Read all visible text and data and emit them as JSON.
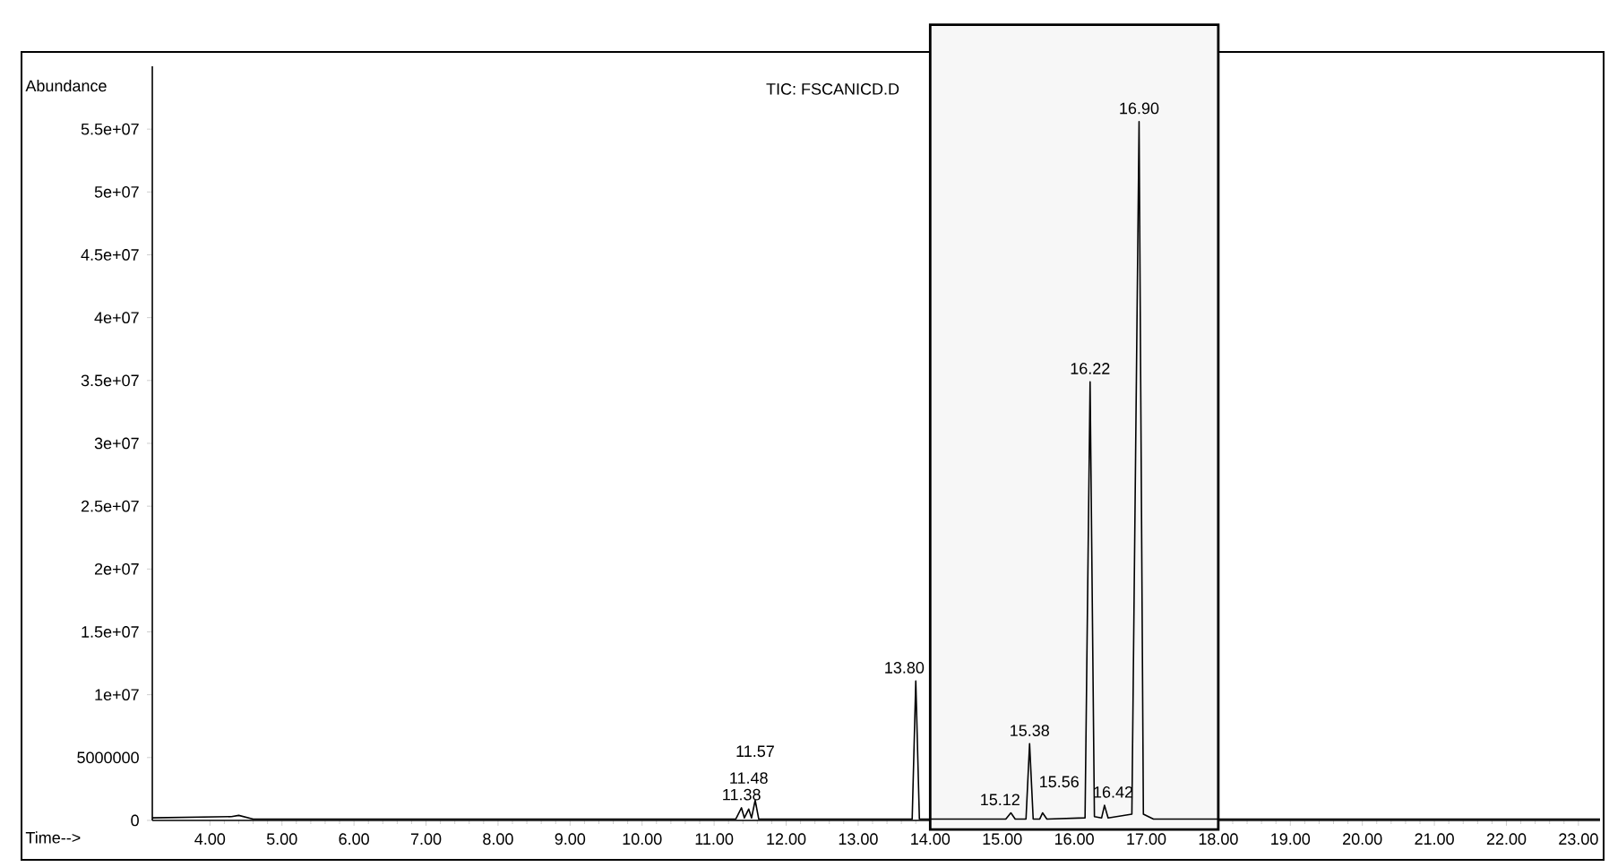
{
  "chart_data": {
    "type": "line",
    "title": "TIC: FSCANICD.D",
    "xlabel": "Time-->",
    "ylabel": "Abundance",
    "xlim": [
      3.2,
      23.3
    ],
    "ylim": [
      0,
      60000000
    ],
    "xticks": [
      {
        "value": 4,
        "label": "4.00"
      },
      {
        "value": 5,
        "label": "5.00"
      },
      {
        "value": 6,
        "label": "6.00"
      },
      {
        "value": 7,
        "label": "7.00"
      },
      {
        "value": 8,
        "label": "8.00"
      },
      {
        "value": 9,
        "label": "9.00"
      },
      {
        "value": 10,
        "label": "10.00"
      },
      {
        "value": 11,
        "label": "11.00"
      },
      {
        "value": 12,
        "label": "12.00"
      },
      {
        "value": 13,
        "label": "13.00"
      },
      {
        "value": 14,
        "label": "14.00"
      },
      {
        "value": 15,
        "label": "15.00"
      },
      {
        "value": 16,
        "label": "16.00"
      },
      {
        "value": 17,
        "label": "17.00"
      },
      {
        "value": 18,
        "label": "18.00"
      },
      {
        "value": 19,
        "label": "19.00"
      },
      {
        "value": 20,
        "label": "20.00"
      },
      {
        "value": 21,
        "label": "21.00"
      },
      {
        "value": 22,
        "label": "22.00"
      },
      {
        "value": 23,
        "label": "23.00"
      }
    ],
    "yticks": [
      0,
      5000000,
      {
        "value": 10000000,
        "label": "1e+07"
      },
      {
        "value": 15000000,
        "label": "1.5e+07"
      },
      {
        "value": 20000000,
        "label": "2e+07"
      },
      {
        "value": 25000000,
        "label": "2.5e+07"
      },
      {
        "value": 30000000,
        "label": "3e+07"
      },
      {
        "value": 35000000,
        "label": "3.5e+07"
      },
      {
        "value": 40000000,
        "label": "4e+07"
      },
      {
        "value": 45000000,
        "label": "4.5e+07"
      },
      {
        "value": 50000000,
        "label": "5e+07"
      },
      {
        "value": 55000000,
        "label": "5.5e+07"
      }
    ],
    "bands": [
      {
        "axis": "x",
        "from": 14,
        "to": 18,
        "color": "#000000"
      }
    ],
    "series": [
      {
        "color": "#000000",
        "x": [
          3.2,
          4.3,
          4.4,
          4.6,
          11.3,
          11.38,
          11.42,
          11.48,
          11.52,
          11.57,
          11.62,
          13.75,
          13.8,
          13.85,
          15.05,
          15.12,
          15.18,
          15.33,
          15.38,
          15.43,
          15.52,
          15.56,
          15.62,
          16.15,
          16.22,
          16.28,
          16.38,
          16.42,
          16.47,
          16.8,
          16.9,
          16.96,
          17.1,
          23.3
        ],
        "values": [
          200000,
          300000,
          400000,
          100000,
          100000,
          1000000,
          200000,
          900000,
          200000,
          1600000,
          100000,
          100000,
          11100000,
          100000,
          100000,
          600000,
          100000,
          100000,
          6100000,
          100000,
          100000,
          600000,
          100000,
          200000,
          34900000,
          300000,
          200000,
          1200000,
          200000,
          500000,
          55600000,
          500000,
          100000,
          100000
        ]
      }
    ],
    "annotations": [
      {
        "text": "11.38",
        "x": 11.38,
        "y": 1000000
      },
      {
        "text": "11.48",
        "x": 11.48,
        "y": 900000
      },
      {
        "text": "11.57",
        "x": 11.57,
        "y": 1600000
      },
      {
        "text": "13.80",
        "x": 13.8,
        "y": 11100000
      },
      {
        "text": "15.12",
        "x": 15.12,
        "y": 600000
      },
      {
        "text": "15.38",
        "x": 15.38,
        "y": 6100000
      },
      {
        "text": "15.56",
        "x": 15.56,
        "y": 600000
      },
      {
        "text": "16.22",
        "x": 16.22,
        "y": 34900000
      },
      {
        "text": "16.42",
        "x": 16.42,
        "y": 1200000
      },
      {
        "text": "16.90",
        "x": 16.9,
        "y": 55600000
      }
    ]
  }
}
